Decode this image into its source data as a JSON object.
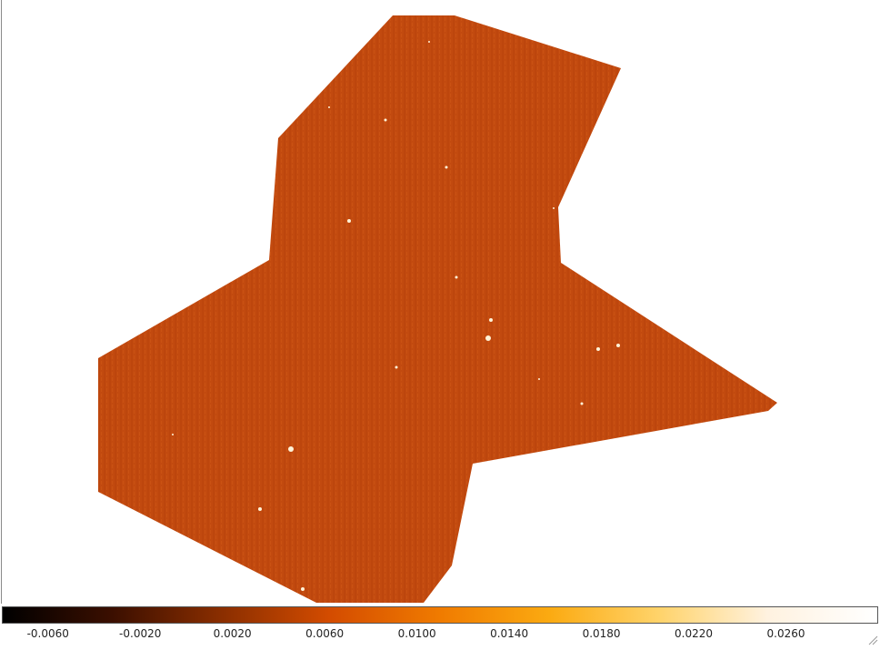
{
  "viewer": {
    "image_colormap": "heat",
    "background": "#ffffff",
    "region_fill": "#c44a0e",
    "region_fill_alt": "#b8400a"
  },
  "colorbar": {
    "colormap": "heat",
    "stops": [
      "#000000",
      "#3b0f00",
      "#8a2e00",
      "#d44c00",
      "#f07b00",
      "#fbaa11",
      "#ffd36a",
      "#fff2e0",
      "#ffffff"
    ],
    "range": [
      -0.008,
      0.03
    ],
    "ticks": [
      {
        "label": "-0.0060",
        "value": -0.006
      },
      {
        "label": "-0.0020",
        "value": -0.002
      },
      {
        "label": "0.0020",
        "value": 0.002
      },
      {
        "label": "0.0060",
        "value": 0.006
      },
      {
        "label": "0.0100",
        "value": 0.01
      },
      {
        "label": "0.0140",
        "value": 0.014
      },
      {
        "label": "0.0180",
        "value": 0.018
      },
      {
        "label": "0.0220",
        "value": 0.022
      },
      {
        "label": "0.0260",
        "value": 0.026
      }
    ]
  },
  "icons": {
    "resize_grip": "resize-grip-icon"
  }
}
